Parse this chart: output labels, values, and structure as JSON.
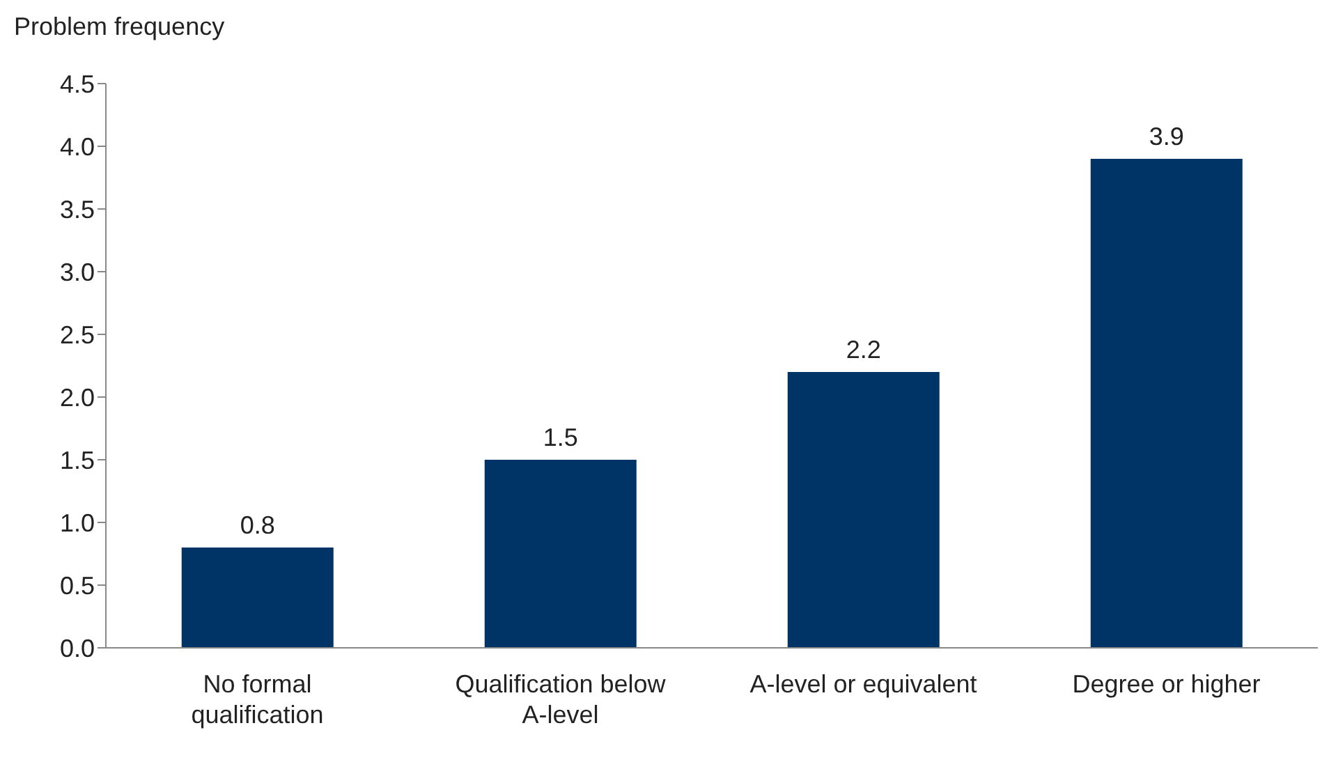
{
  "chart_data": {
    "type": "bar",
    "ylabel": "Problem frequency",
    "categories": [
      "No formal qualification",
      "Qualification below A-level",
      "A-level or equivalent",
      "Degree or higher"
    ],
    "values": [
      0.8,
      1.5,
      2.2,
      3.9
    ],
    "color": "#003366",
    "ylim": [
      0,
      4.5
    ],
    "yticks": [
      {
        "value": 0,
        "label": "0.0"
      },
      {
        "value": 0.5,
        "label": "0.5"
      },
      {
        "value": 1,
        "label": "1.0"
      },
      {
        "value": 1.5,
        "label": "1.5"
      },
      {
        "value": 2,
        "label": "2.0"
      },
      {
        "value": 2.5,
        "label": "2.5"
      },
      {
        "value": 3,
        "label": "3.0"
      },
      {
        "value": 3.5,
        "label": "3.5"
      },
      {
        "value": 4,
        "label": "4.0"
      },
      {
        "value": 4.5,
        "label": "4.5"
      }
    ],
    "grid": false,
    "legend": false,
    "data_labels": true
  }
}
